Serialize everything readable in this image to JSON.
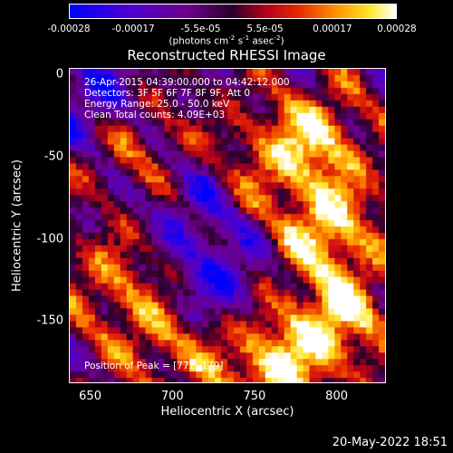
{
  "colorbar": {
    "ticks": [
      {
        "label": "-0.00028",
        "value": -0.00028
      },
      {
        "label": "-0.00017",
        "value": -0.00017
      },
      {
        "label": "-5.5e-05",
        "value": -5.5e-05
      },
      {
        "label": "5.5e-05",
        "value": 5.5e-05
      },
      {
        "label": "0.00017",
        "value": 0.00017
      },
      {
        "label": "0.00028",
        "value": 0.00028
      }
    ],
    "units_prefix": "(photons cm",
    "units_exp1": "-2",
    "units_mid1": " s",
    "units_exp2": "-1",
    "units_mid2": " asec",
    "units_exp3": "-2",
    "units_suffix": ")"
  },
  "title": "Reconstructed RHESSI Image",
  "overlay": {
    "line1": "26-Apr-2015 04:39:00.000 to 04:42:12.000",
    "line2": "Detectors: 3F 5F 6F 7F 8F 9F, Att 0",
    "line3": "Energy Range: 25.0 - 50.0 keV",
    "line4": "Clean    Total counts: 4.09E+03",
    "peak": "Position of Peak = [772,-179]"
  },
  "axes": {
    "xlabel": "Heliocentric X (arcsec)",
    "ylabel": "Heliocentric Y (arcsec)",
    "xlim": [
      637,
      830
    ],
    "ylim": [
      -188,
      4
    ],
    "xticks": [
      650,
      700,
      750,
      800
    ],
    "yticks": [
      0,
      -50,
      -100,
      -150
    ]
  },
  "footer": "20-May-2022 18:51",
  "colors": {
    "background": "#000000",
    "text": "#ffffff"
  },
  "chart_data": {
    "type": "heatmap",
    "title": "Reconstructed RHESSI Image",
    "xlabel": "Heliocentric X (arcsec)",
    "ylabel": "Heliocentric Y (arcsec)",
    "xlim": [
      637,
      830
    ],
    "ylim": [
      -188,
      4
    ],
    "zlim": [
      -0.00028,
      0.00028
    ],
    "colormap": "blue-purple-red-yellow-white",
    "peak": [
      772,
      -179
    ],
    "bright_regions": [
      {
        "x": 785,
        "y": -40,
        "level": "high"
      },
      {
        "x": 795,
        "y": -95,
        "level": "high"
      },
      {
        "x": 800,
        "y": -150,
        "level": "high"
      },
      {
        "x": 760,
        "y": -180,
        "level": "high"
      },
      {
        "x": 680,
        "y": -40,
        "level": "medium"
      },
      {
        "x": 665,
        "y": -130,
        "level": "medium"
      },
      {
        "x": 700,
        "y": -165,
        "level": "medium"
      },
      {
        "x": 740,
        "y": -60,
        "level": "medium"
      }
    ],
    "dark_regions": [
      {
        "x": 655,
        "y": -15,
        "level": "low"
      },
      {
        "x": 720,
        "y": -70,
        "level": "low"
      },
      {
        "x": 725,
        "y": -125,
        "level": "low"
      }
    ]
  }
}
